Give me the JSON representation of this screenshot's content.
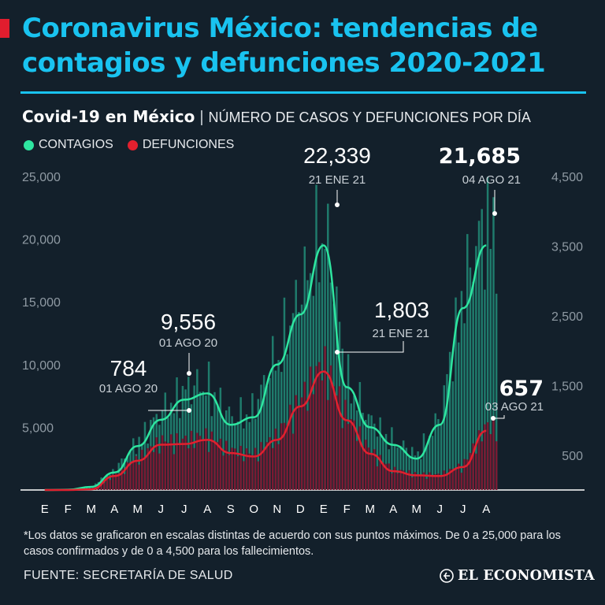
{
  "headline": "Coronavirus México: tendencias de contagios y defunciones 2020-2021",
  "subtitle": {
    "bold": "Covid-19 en México",
    "separator": "|",
    "rest": "NÚMERO DE CASOS Y DEFUNCIONES POR DÍA"
  },
  "legend": {
    "cases": "CONTAGIOS",
    "deaths": "DEFUNCIONES"
  },
  "colors": {
    "background": "#13202b",
    "title": "#19c3f0",
    "cases_line": "#2ee6a0",
    "cases_bars": "#1f7b6c",
    "deaths_line": "#e1202e",
    "deaths_bars": "#7a1a33",
    "text": "#ffffff"
  },
  "footnote": "*Los datos se graficaron en escalas distintas de acuerdo con sus puntos máximos. De 0 a 25,000 para los casos confirmados y de 0 a 4,500 para los fallecimientos.",
  "source": "FUENTE: SECRETARÍA DE SALUD",
  "brand": "EL ECONOMISTA",
  "chart_data": {
    "type": "line",
    "x": [
      "E",
      "F",
      "M",
      "A",
      "M",
      "J",
      "J",
      "A",
      "S",
      "O",
      "N",
      "D",
      "E",
      "F",
      "M",
      "A",
      "M",
      "J",
      "J",
      "A"
    ],
    "ylim_left": [
      0,
      25000
    ],
    "ylim_right": [
      0,
      4500
    ],
    "left_ticks": [
      "25,000",
      "20,000",
      "15,000",
      "10,000",
      "5,000"
    ],
    "right_ticks": [
      "4,500",
      "3,500",
      "2,500",
      "1,500",
      "500"
    ],
    "series": [
      {
        "name": "CONTAGIOS",
        "axis": "left",
        "values": [
          0,
          20,
          250,
          1400,
          3500,
          5600,
          7200,
          7700,
          5200,
          5800,
          10000,
          14000,
          19500,
          8200,
          5000,
          3600,
          2500,
          5200,
          14500,
          19500
        ]
      },
      {
        "name": "DEFUNCIONES",
        "axis": "right",
        "values": [
          0,
          0,
          10,
          200,
          420,
          650,
          660,
          720,
          530,
          480,
          720,
          1200,
          1700,
          1000,
          520,
          270,
          210,
          200,
          330,
          850
        ]
      }
    ],
    "annotations": [
      {
        "value": "784",
        "date": "01 AGO 20",
        "series": "DEFUNCIONES",
        "emphasis": false
      },
      {
        "value": "9,556",
        "date": "01 AGO 20",
        "series": "CONTAGIOS",
        "emphasis": false
      },
      {
        "value": "22,339",
        "date": "21 ENE 21",
        "series": "CONTAGIOS",
        "emphasis": false
      },
      {
        "value": "1,803",
        "date": "21 ENE 21",
        "series": "DEFUNCIONES",
        "emphasis": false
      },
      {
        "value": "21,685",
        "date": "04 AGO 21",
        "series": "CONTAGIOS",
        "emphasis": true
      },
      {
        "value": "657",
        "date": "03 AGO 21",
        "series": "DEFUNCIONES",
        "emphasis": true
      }
    ]
  }
}
